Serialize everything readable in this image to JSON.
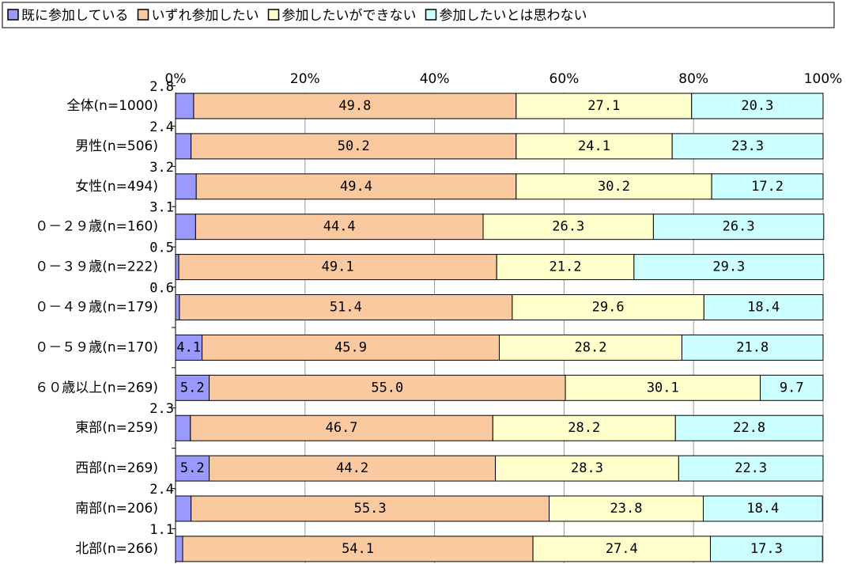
{
  "chart_data": {
    "type": "stacked_bar_horizontal",
    "categories": [
      "全体(n=1000)",
      "男性(n=506)",
      "女性(n=494)",
      "０－２９歳(n=160)",
      "０－３９歳(n=222)",
      "０－４９歳(n=179)",
      "０－５９歳(n=170)",
      "６０歳以上(n=269)",
      "東部(n=259)",
      "西部(n=269)",
      "南部(n=206)",
      "北部(n=266)"
    ],
    "series": [
      {
        "name": "既に参加している",
        "color": "#9999ff",
        "values": [
          2.8,
          2.4,
          3.2,
          3.1,
          0.5,
          0.6,
          4.1,
          5.2,
          2.3,
          5.2,
          2.4,
          1.1
        ],
        "value_labels": [
          "2.8",
          "2.4",
          "3.2",
          "3.1",
          "0.5",
          "0.6",
          "4.1",
          "5.2",
          "2.3",
          "5.2",
          "2.4",
          "1.1"
        ]
      },
      {
        "name": "いずれ参加したい",
        "color": "#fbc9a0",
        "values": [
          49.8,
          50.2,
          49.4,
          44.4,
          49.1,
          51.4,
          45.9,
          55.0,
          46.7,
          44.2,
          55.3,
          54.1
        ],
        "value_labels": [
          "49.8",
          "50.2",
          "49.4",
          "44.4",
          "49.1",
          "51.4",
          "45.9",
          "55.0",
          "46.7",
          "44.2",
          "55.3",
          "54.1"
        ]
      },
      {
        "name": "参加したいができない",
        "color": "#ffffcc",
        "values": [
          27.1,
          24.1,
          30.2,
          26.3,
          21.2,
          29.6,
          28.2,
          30.1,
          28.2,
          28.3,
          23.8,
          27.4
        ],
        "value_labels": [
          "27.1",
          "24.1",
          "30.2",
          "26.3",
          "21.2",
          "29.6",
          "28.2",
          "30.1",
          "28.2",
          "28.3",
          "23.8",
          "27.4"
        ]
      },
      {
        "name": "参加したいとは思わない",
        "color": "#ccffff",
        "values": [
          20.3,
          23.3,
          17.2,
          26.3,
          29.3,
          18.4,
          21.8,
          9.7,
          22.8,
          22.3,
          18.4,
          17.3
        ],
        "value_labels": [
          "20.3",
          "23.3",
          "17.2",
          "26.3",
          "29.3",
          "18.4",
          "21.8",
          "9.7",
          "22.8",
          "22.3",
          "18.4",
          "17.3"
        ]
      }
    ],
    "xlim": [
      0,
      100
    ],
    "xticks": [
      {
        "value": 0,
        "label": "0%"
      },
      {
        "value": 20,
        "label": "20%"
      },
      {
        "value": 40,
        "label": "40%"
      },
      {
        "value": 60,
        "label": "60%"
      },
      {
        "value": 80,
        "label": "80%"
      },
      {
        "value": 100,
        "label": "100%"
      }
    ],
    "grid": true
  }
}
